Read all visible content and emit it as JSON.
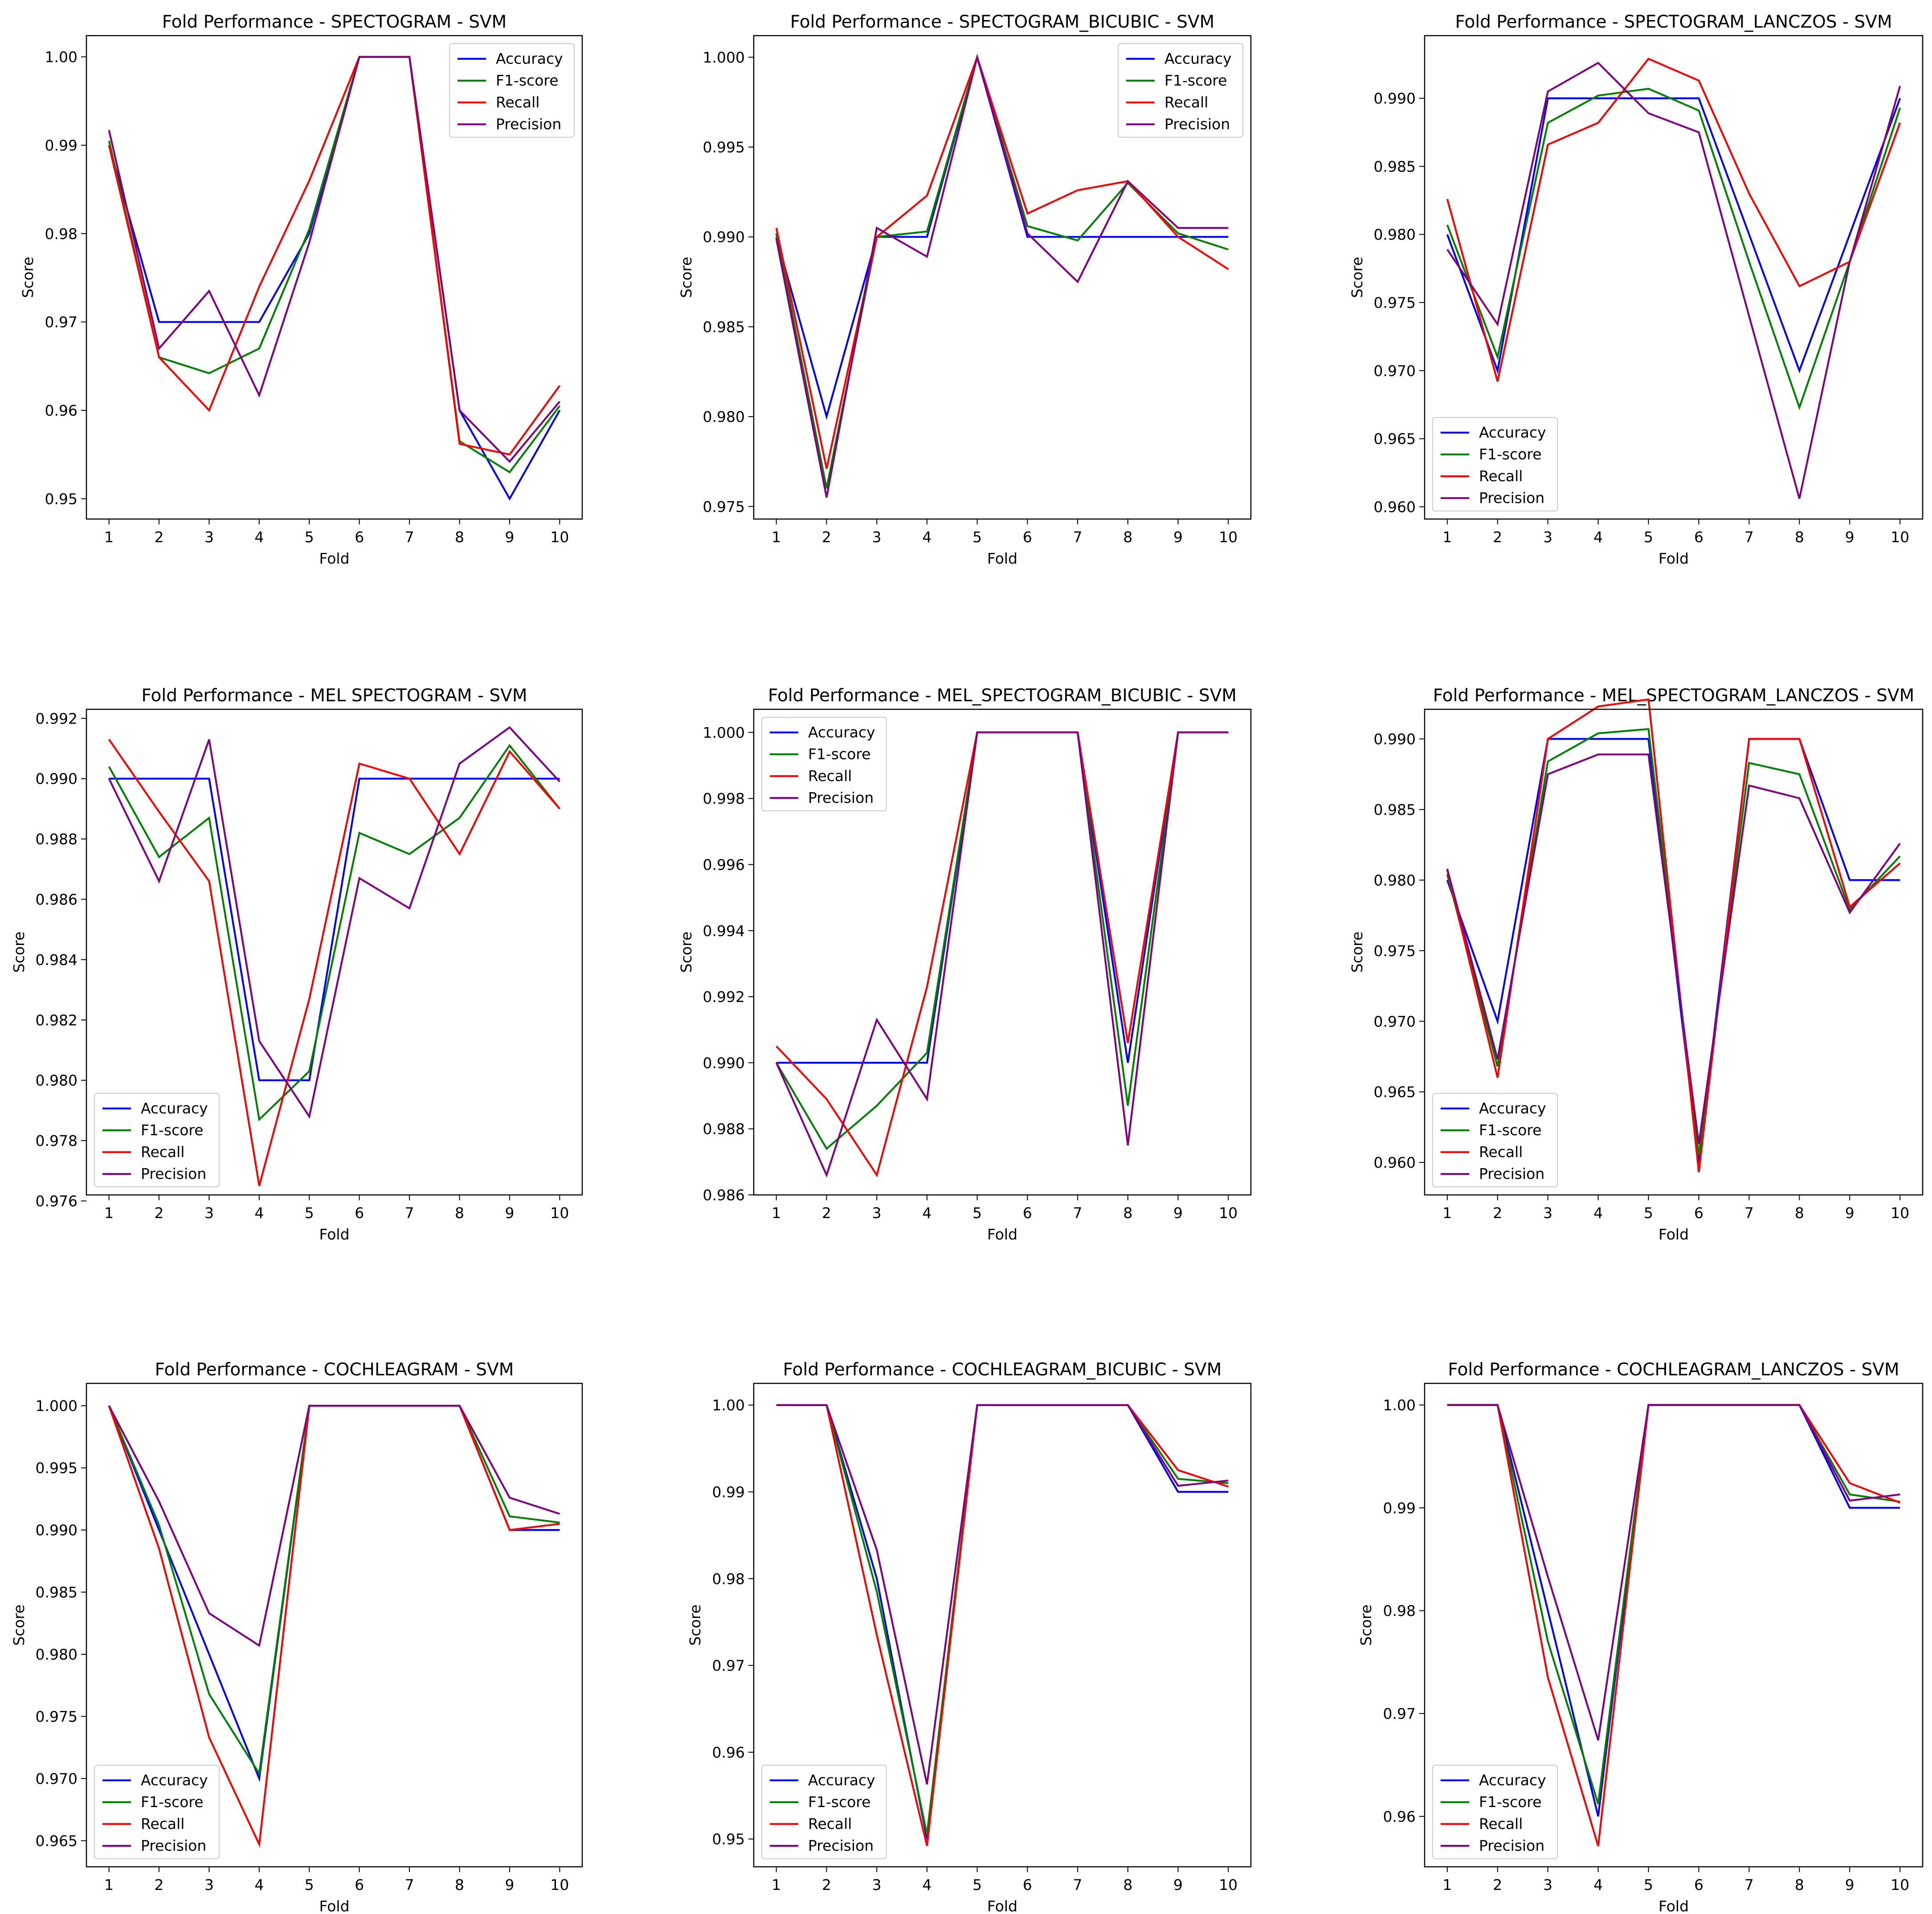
{
  "colors": {
    "Accuracy": "#0000ff",
    "F1-score": "#008000",
    "Recall": "#ff0000",
    "Precision": "#800080"
  },
  "chart_data": [
    {
      "type": "line",
      "title": "Fold Performance - SPECTOGRAM - SVM",
      "xlabel": "Fold",
      "ylabel": "Score",
      "x": [
        1,
        2,
        3,
        4,
        5,
        6,
        7,
        8,
        9,
        10
      ],
      "ylim": [
        0.9477,
        1.0024
      ],
      "yticks": [
        0.95,
        0.96,
        0.97,
        0.98,
        0.99,
        1.0
      ],
      "ytick_labels": [
        "0.95",
        "0.96",
        "0.97",
        "0.98",
        "0.99",
        "1.00"
      ],
      "legend": "upper right",
      "series": [
        {
          "name": "Accuracy",
          "values": [
            0.99,
            0.97,
            0.97,
            0.97,
            0.98,
            1.0,
            1.0,
            0.96,
            0.95,
            0.96
          ]
        },
        {
          "name": "F1-score",
          "values": [
            0.9905,
            0.966,
            0.9642,
            0.967,
            0.9805,
            1.0,
            1.0,
            0.9565,
            0.953,
            0.9605
          ]
        },
        {
          "name": "Recall",
          "values": [
            0.99,
            0.966,
            0.96,
            0.974,
            0.986,
            1.0,
            1.0,
            0.9562,
            0.955,
            0.9628
          ]
        },
        {
          "name": "Precision",
          "values": [
            0.9917,
            0.967,
            0.9735,
            0.9617,
            0.979,
            1.0,
            1.0,
            0.96,
            0.9542,
            0.961
          ]
        }
      ]
    },
    {
      "type": "line",
      "title": "Fold Performance - SPECTOGRAM_BICUBIC - SVM",
      "xlabel": "Fold",
      "ylabel": "Score",
      "x": [
        1,
        2,
        3,
        4,
        5,
        6,
        7,
        8,
        9,
        10
      ],
      "ylim": [
        0.9743,
        1.0012
      ],
      "yticks": [
        0.975,
        0.98,
        0.985,
        0.99,
        0.995,
        1.0
      ],
      "ytick_labels": [
        "0.975",
        "0.980",
        "0.985",
        "0.990",
        "0.995",
        "1.000"
      ],
      "legend": "upper right",
      "series": [
        {
          "name": "Accuracy",
          "values": [
            0.99,
            0.98,
            0.99,
            0.99,
            1.0,
            0.99,
            0.99,
            0.99,
            0.99,
            0.99
          ]
        },
        {
          "name": "F1-score",
          "values": [
            0.9902,
            0.976,
            0.99,
            0.9903,
            1.0,
            0.9906,
            0.9898,
            0.993,
            0.9902,
            0.9893
          ]
        },
        {
          "name": "Recall",
          "values": [
            0.9905,
            0.9771,
            0.99,
            0.9923,
            1.0,
            0.9913,
            0.9926,
            0.9931,
            0.99,
            0.9882
          ]
        },
        {
          "name": "Precision",
          "values": [
            0.9899,
            0.9755,
            0.9905,
            0.9889,
            1.0,
            0.9902,
            0.9875,
            0.9931,
            0.9905,
            0.9905
          ]
        }
      ]
    },
    {
      "type": "line",
      "title": "Fold Performance - SPECTOGRAM_LANCZOS - SVM",
      "xlabel": "Fold",
      "ylabel": "Score",
      "x": [
        1,
        2,
        3,
        4,
        5,
        6,
        7,
        8,
        9,
        10
      ],
      "ylim": [
        0.9591,
        0.9946
      ],
      "yticks": [
        0.96,
        0.965,
        0.97,
        0.975,
        0.98,
        0.985,
        0.99
      ],
      "ytick_labels": [
        "0.960",
        "0.965",
        "0.970",
        "0.975",
        "0.980",
        "0.985",
        "0.990"
      ],
      "legend": "lower left",
      "series": [
        {
          "name": "Accuracy",
          "values": [
            0.98,
            0.97,
            0.99,
            0.99,
            0.99,
            0.99,
            0.98,
            0.97,
            0.98,
            0.99
          ]
        },
        {
          "name": "F1-score",
          "values": [
            0.9807,
            0.971,
            0.9882,
            0.9902,
            0.9907,
            0.9891,
            0.978,
            0.9673,
            0.978,
            0.9893
          ]
        },
        {
          "name": "Recall",
          "values": [
            0.9826,
            0.9692,
            0.9866,
            0.9882,
            0.9929,
            0.9913,
            0.983,
            0.9762,
            0.978,
            0.9882
          ]
        },
        {
          "name": "Precision",
          "values": [
            0.9789,
            0.9734,
            0.9905,
            0.9926,
            0.9889,
            0.9875,
            0.974,
            0.9606,
            0.978,
            0.9909
          ]
        }
      ]
    },
    {
      "type": "line",
      "title": "Fold Performance - MEL SPECTOGRAM - SVM",
      "xlabel": "Fold",
      "ylabel": "Score",
      "x": [
        1,
        2,
        3,
        4,
        5,
        6,
        7,
        8,
        9,
        10
      ],
      "ylim": [
        0.9762,
        0.9923
      ],
      "yticks": [
        0.976,
        0.978,
        0.98,
        0.982,
        0.984,
        0.986,
        0.988,
        0.99,
        0.992
      ],
      "ytick_labels": [
        "0.976",
        "0.978",
        "0.980",
        "0.982",
        "0.984",
        "0.986",
        "0.988",
        "0.990",
        "0.992"
      ],
      "legend": "lower left",
      "series": [
        {
          "name": "Accuracy",
          "values": [
            0.99,
            0.99,
            0.99,
            0.98,
            0.98,
            0.99,
            0.99,
            0.99,
            0.99,
            0.99
          ]
        },
        {
          "name": "F1-score",
          "values": [
            0.9904,
            0.9874,
            0.9887,
            0.9787,
            0.9803,
            0.9882,
            0.9875,
            0.9887,
            0.9911,
            0.989
          ]
        },
        {
          "name": "Recall",
          "values": [
            0.9913,
            0.9889,
            0.9866,
            0.9765,
            0.9827,
            0.9905,
            0.99,
            0.9875,
            0.9909,
            0.989
          ]
        },
        {
          "name": "Precision",
          "values": [
            0.99,
            0.9866,
            0.9913,
            0.9813,
            0.9788,
            0.9867,
            0.9857,
            0.9905,
            0.9917,
            0.9899
          ]
        }
      ]
    },
    {
      "type": "line",
      "title": "Fold Performance - MEL_SPECTOGRAM_BICUBIC - SVM",
      "xlabel": "Fold",
      "ylabel": "Score",
      "x": [
        1,
        2,
        3,
        4,
        5,
        6,
        7,
        8,
        9,
        10
      ],
      "ylim": [
        0.986,
        1.0007
      ],
      "yticks": [
        0.986,
        0.988,
        0.99,
        0.992,
        0.994,
        0.996,
        0.998,
        1.0
      ],
      "ytick_labels": [
        "0.986",
        "0.988",
        "0.990",
        "0.992",
        "0.994",
        "0.996",
        "0.998",
        "1.000"
      ],
      "legend": "upper left",
      "series": [
        {
          "name": "Accuracy",
          "values": [
            0.99,
            0.99,
            0.99,
            0.99,
            1.0,
            1.0,
            1.0,
            0.99,
            1.0,
            1.0
          ]
        },
        {
          "name": "F1-score",
          "values": [
            0.99,
            0.9874,
            0.9887,
            0.9903,
            1.0,
            1.0,
            1.0,
            0.9887,
            1.0,
            1.0
          ]
        },
        {
          "name": "Recall",
          "values": [
            0.9905,
            0.9889,
            0.9866,
            0.9923,
            1.0,
            1.0,
            1.0,
            0.9906,
            1.0,
            1.0
          ]
        },
        {
          "name": "Precision",
          "values": [
            0.99,
            0.9866,
            0.9913,
            0.9889,
            1.0,
            1.0,
            1.0,
            0.9875,
            1.0,
            1.0
          ]
        }
      ]
    },
    {
      "type": "line",
      "title": "Fold Performance - MEL_SPECTOGRAM_LANCZOS - SVM",
      "xlabel": "Fold",
      "ylabel": "Score",
      "x": [
        1,
        2,
        3,
        4,
        5,
        6,
        7,
        8,
        9,
        10
      ],
      "ylim": [
        0.9577,
        0.9921
      ],
      "yticks": [
        0.96,
        0.965,
        0.97,
        0.975,
        0.98,
        0.985,
        0.99
      ],
      "ytick_labels": [
        "0.960",
        "0.965",
        "0.970",
        "0.975",
        "0.980",
        "0.985",
        "0.990"
      ],
      "legend": "lower left",
      "series": [
        {
          "name": "Accuracy",
          "values": [
            0.98,
            0.97,
            0.99,
            0.99,
            0.99,
            0.96,
            0.99,
            0.99,
            0.98,
            0.98
          ]
        },
        {
          "name": "F1-score",
          "values": [
            0.9804,
            0.9668,
            0.9884,
            0.9904,
            0.9907,
            0.9605,
            0.9883,
            0.9875,
            0.9779,
            0.9817
          ]
        },
        {
          "name": "Recall",
          "values": [
            0.9807,
            0.966,
            0.99,
            0.9923,
            0.9928,
            0.9593,
            0.99,
            0.99,
            0.9781,
            0.9812
          ]
        },
        {
          "name": "Precision",
          "values": [
            0.9808,
            0.9673,
            0.9875,
            0.9889,
            0.9889,
            0.9613,
            0.9867,
            0.9858,
            0.9777,
            0.9826
          ]
        }
      ]
    },
    {
      "type": "line",
      "title": "Fold Performance - COCHLEAGRAM - SVM",
      "xlabel": "Fold",
      "ylabel": "Score",
      "x": [
        1,
        2,
        3,
        4,
        5,
        6,
        7,
        8,
        9,
        10
      ],
      "ylim": [
        0.9629,
        1.0018
      ],
      "yticks": [
        0.965,
        0.97,
        0.975,
        0.98,
        0.985,
        0.99,
        0.995,
        1.0
      ],
      "ytick_labels": [
        "0.965",
        "0.970",
        "0.975",
        "0.980",
        "0.985",
        "0.990",
        "0.995",
        "1.000"
      ],
      "legend": "lower left",
      "series": [
        {
          "name": "Accuracy",
          "values": [
            1.0,
            0.99,
            0.98,
            0.97,
            1.0,
            1.0,
            1.0,
            1.0,
            0.99,
            0.99
          ]
        },
        {
          "name": "F1-score",
          "values": [
            1.0,
            0.9904,
            0.9768,
            0.9704,
            1.0,
            1.0,
            1.0,
            1.0,
            0.9911,
            0.9906
          ]
        },
        {
          "name": "Recall",
          "values": [
            1.0,
            0.9885,
            0.9733,
            0.9647,
            1.0,
            1.0,
            1.0,
            1.0,
            0.99,
            0.9905
          ]
        },
        {
          "name": "Precision",
          "values": [
            1.0,
            0.9923,
            0.9833,
            0.9807,
            1.0,
            1.0,
            1.0,
            1.0,
            0.9926,
            0.9913
          ]
        }
      ]
    },
    {
      "type": "line",
      "title": "Fold Performance - COCHLEAGRAM_BICUBIC - SVM",
      "xlabel": "Fold",
      "ylabel": "Score",
      "x": [
        1,
        2,
        3,
        4,
        5,
        6,
        7,
        8,
        9,
        10
      ],
      "ylim": [
        0.9468,
        1.0025
      ],
      "yticks": [
        0.95,
        0.96,
        0.97,
        0.98,
        0.99,
        1.0
      ],
      "ytick_labels": [
        "0.95",
        "0.96",
        "0.97",
        "0.98",
        "0.99",
        "1.00"
      ],
      "legend": "lower left",
      "series": [
        {
          "name": "Accuracy",
          "values": [
            1.0,
            1.0,
            0.98,
            0.95,
            1.0,
            1.0,
            1.0,
            1.0,
            0.99,
            0.99
          ]
        },
        {
          "name": "F1-score",
          "values": [
            1.0,
            1.0,
            0.9785,
            0.9505,
            1.0,
            1.0,
            1.0,
            1.0,
            0.9915,
            0.991
          ]
        },
        {
          "name": "Recall",
          "values": [
            1.0,
            1.0,
            0.9735,
            0.9492,
            1.0,
            1.0,
            1.0,
            1.0,
            0.9925,
            0.9906
          ]
        },
        {
          "name": "Precision",
          "values": [
            1.0,
            1.0,
            0.9833,
            0.9563,
            1.0,
            1.0,
            1.0,
            1.0,
            0.9907,
            0.9913
          ]
        }
      ]
    },
    {
      "type": "line",
      "title": "Fold Performance - COCHLEAGRAM_LANCZOS - SVM",
      "xlabel": "Fold",
      "ylabel": "Score",
      "x": [
        1,
        2,
        3,
        4,
        5,
        6,
        7,
        8,
        9,
        10
      ],
      "ylim": [
        0.9551,
        1.0021
      ],
      "yticks": [
        0.96,
        0.97,
        0.98,
        0.99,
        1.0
      ],
      "ytick_labels": [
        "0.96",
        "0.97",
        "0.98",
        "0.99",
        "1.00"
      ],
      "legend": "lower left",
      "series": [
        {
          "name": "Accuracy",
          "values": [
            1.0,
            1.0,
            0.98,
            0.96,
            1.0,
            1.0,
            1.0,
            1.0,
            0.99,
            0.99
          ]
        },
        {
          "name": "F1-score",
          "values": [
            1.0,
            1.0,
            0.977,
            0.9612,
            1.0,
            1.0,
            1.0,
            1.0,
            0.9913,
            0.9906
          ]
        },
        {
          "name": "Recall",
          "values": [
            1.0,
            1.0,
            0.9735,
            0.9571,
            1.0,
            1.0,
            1.0,
            1.0,
            0.9924,
            0.9905
          ]
        },
        {
          "name": "Precision",
          "values": [
            1.0,
            1.0,
            0.9833,
            0.9674,
            1.0,
            1.0,
            1.0,
            1.0,
            0.9907,
            0.9913
          ]
        }
      ]
    }
  ]
}
